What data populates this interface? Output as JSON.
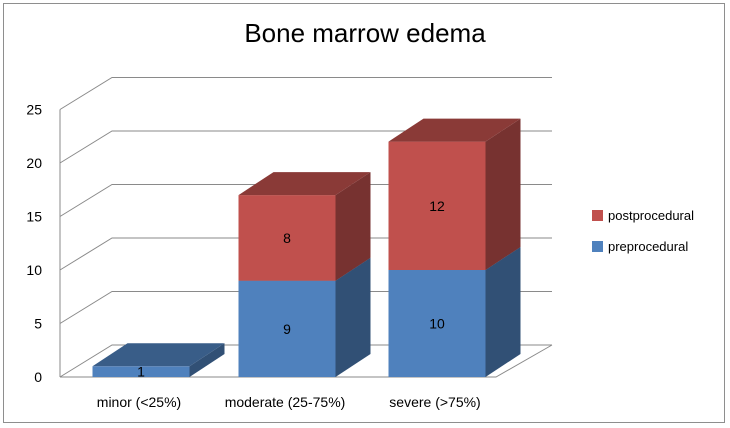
{
  "chart_data": {
    "type": "bar",
    "stacked": true,
    "three_d": true,
    "title": "Bone marrow edema",
    "categories": [
      "minor (<25%)",
      "moderate (25-75%)",
      "severe (>75%)"
    ],
    "series": [
      {
        "name": "preprocedural",
        "values": [
          1,
          9,
          10
        ],
        "color": "#4f81bd"
      },
      {
        "name": "postprocedural",
        "values": [
          0,
          8,
          12
        ],
        "color": "#c0504d"
      }
    ],
    "data_labels": [
      [
        "1",
        "9",
        "10"
      ],
      [
        "",
        "8",
        "12"
      ]
    ],
    "ylim": [
      0,
      25
    ],
    "yticks": [
      "0",
      "5",
      "10",
      "15",
      "20",
      "25"
    ],
    "grid": true,
    "legend_position": "right"
  }
}
